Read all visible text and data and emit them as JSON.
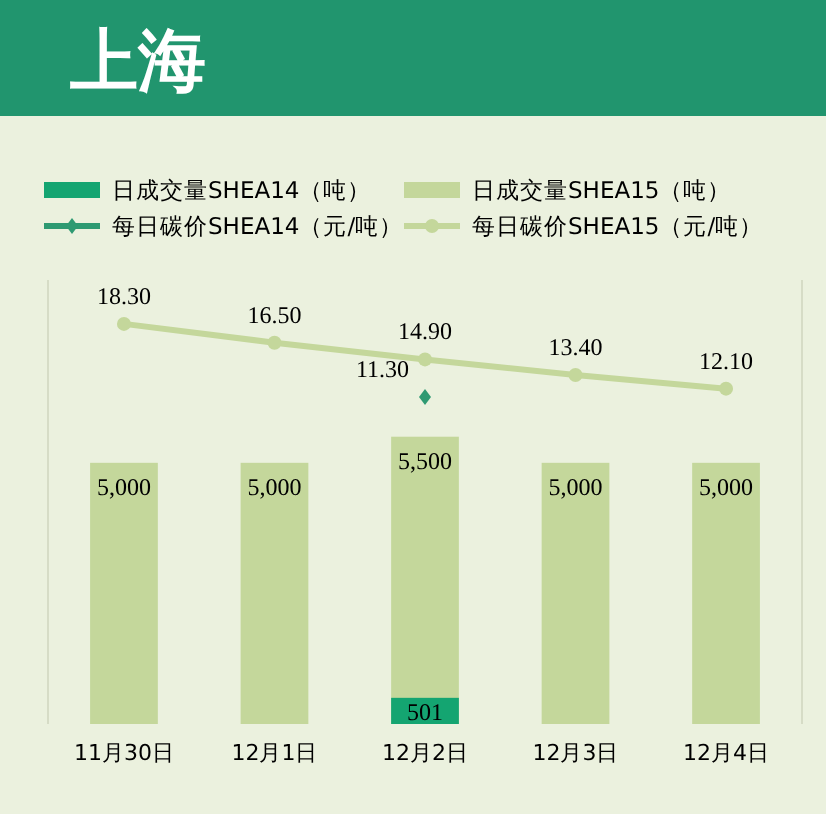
{
  "chart_data": {
    "type": "bar",
    "title": "上海",
    "categories": [
      "11月30日",
      "12月1日",
      "12月2日",
      "12月3日",
      "12月4日"
    ],
    "legend": "top",
    "ylim": [
      0,
      8500
    ],
    "y2lim": [
      -20,
      22.5
    ],
    "series": [
      {
        "name": "日成交量SHEA14（吨）",
        "color": "#14a571",
        "values": [
          null,
          null,
          501,
          null,
          null
        ],
        "value_labels": [
          null,
          null,
          "501",
          null,
          null
        ]
      },
      {
        "name": "日成交量SHEA15（吨）",
        "color": "#c4d79b",
        "values": [
          5000,
          5000,
          5500,
          5000,
          5000
        ],
        "value_labels": [
          "5,000",
          "5,000",
          "5,500",
          "5,000",
          "5,000"
        ]
      },
      {
        "name": "每日碳价SHEA14（元/吨）",
        "type": "line",
        "axis": "y2",
        "color": "#2e9a72",
        "marker": "diamond",
        "values": [
          null,
          null,
          11.3,
          null,
          null
        ],
        "value_labels": [
          null,
          null,
          "11.30",
          null,
          null
        ]
      },
      {
        "name": "每日碳价SHEA15（元/吨）",
        "type": "line",
        "axis": "y2",
        "color": "#c4d79b",
        "marker": "circle",
        "values": [
          18.3,
          16.5,
          14.9,
          13.4,
          12.1
        ],
        "value_labels": [
          "18.30",
          "16.50",
          "14.90",
          "13.40",
          "12.10"
        ]
      }
    ]
  }
}
